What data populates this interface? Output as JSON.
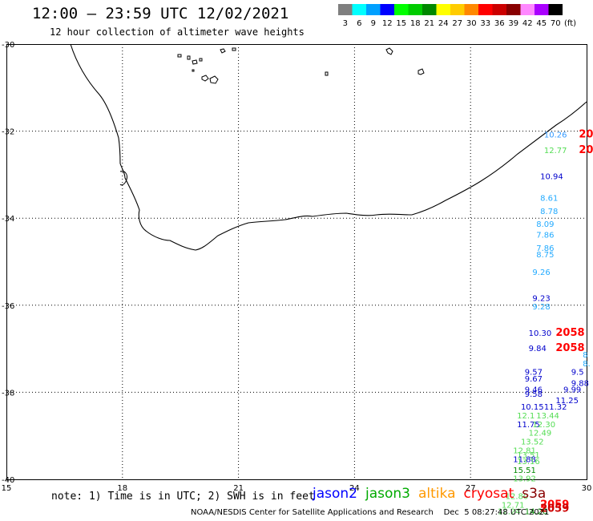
{
  "header": {
    "title": "12:00 – 23:59 UTC 12/02/2021",
    "subtitle": "12 hour collection of altimeter wave heights"
  },
  "color_scale": {
    "unit": "(ft)",
    "bins": [
      {
        "label": "3",
        "color": "#7f7f7f"
      },
      {
        "label": "6",
        "color": "#00ffff"
      },
      {
        "label": "9",
        "color": "#00a0ff"
      },
      {
        "label": "12",
        "color": "#0000ff"
      },
      {
        "label": "15",
        "color": "#00ff00"
      },
      {
        "label": "18",
        "color": "#00cc00"
      },
      {
        "label": "21",
        "color": "#008800"
      },
      {
        "label": "24",
        "color": "#ffff00"
      },
      {
        "label": "27",
        "color": "#ffcc00"
      },
      {
        "label": "30",
        "color": "#ff8800"
      },
      {
        "label": "33",
        "color": "#ff0000"
      },
      {
        "label": "36",
        "color": "#cc0000"
      },
      {
        "label": "39",
        "color": "#880000"
      },
      {
        "label": "42",
        "color": "#ff88ff"
      },
      {
        "label": "45",
        "color": "#aa00ff"
      },
      {
        "label": "70",
        "color": "#000000"
      }
    ]
  },
  "map": {
    "lon_range": [
      15,
      30
    ],
    "lat_range": [
      -40,
      -30
    ],
    "lon_ticks": [
      "15",
      "18",
      "21",
      "24",
      "27",
      "30"
    ],
    "lat_ticks": [
      "-30",
      "-32",
      "-34",
      "-36",
      "-38",
      "-40"
    ],
    "grid": true,
    "coastline_color": "#000000",
    "observations": [
      {
        "lon": 28.9,
        "lat": -32.15,
        "text": "10.26",
        "color": "#3399ff"
      },
      {
        "lon": 29.8,
        "lat": -32.15,
        "text": "20",
        "color": "#ff0000"
      },
      {
        "lon": 28.9,
        "lat": -32.5,
        "text": "12.77",
        "color": "#55dd55"
      },
      {
        "lon": 29.8,
        "lat": -32.5,
        "text": "20",
        "color": "#ff0000"
      },
      {
        "lon": 28.8,
        "lat": -33.1,
        "text": "10.94",
        "color": "#0000cc"
      },
      {
        "lon": 28.8,
        "lat": -33.6,
        "text": "8.61",
        "color": "#22aaff"
      },
      {
        "lon": 28.8,
        "lat": -33.9,
        "text": "8.78",
        "color": "#22aaff"
      },
      {
        "lon": 28.7,
        "lat": -34.2,
        "text": "8.09",
        "color": "#22aaff"
      },
      {
        "lon": 28.7,
        "lat": -34.45,
        "text": "7.86",
        "color": "#22aaff"
      },
      {
        "lon": 28.7,
        "lat": -34.75,
        "text": "7.86",
        "color": "#22aaff"
      },
      {
        "lon": 28.7,
        "lat": -34.9,
        "text": "8.75",
        "color": "#22aaff"
      },
      {
        "lon": 28.6,
        "lat": -35.3,
        "text": "9.26",
        "color": "#22aaff"
      },
      {
        "lon": 28.6,
        "lat": -35.9,
        "text": "9.23",
        "color": "#0000cc"
      },
      {
        "lon": 28.6,
        "lat": -36.1,
        "text": "9.28",
        "color": "#22aaff"
      },
      {
        "lon": 28.5,
        "lat": -36.7,
        "text": "10.30",
        "color": "#0000cc"
      },
      {
        "lon": 29.2,
        "lat": -36.7,
        "text": "2058",
        "color": "#ff0000"
      },
      {
        "lon": 28.5,
        "lat": -37.05,
        "text": "9.84",
        "color": "#0000cc"
      },
      {
        "lon": 29.2,
        "lat": -37.05,
        "text": "2058",
        "color": "#ff0000"
      },
      {
        "lon": 29.9,
        "lat": -37.2,
        "text": "8",
        "color": "#22aaff"
      },
      {
        "lon": 29.9,
        "lat": -37.4,
        "text": "8.",
        "color": "#22aaff"
      },
      {
        "lon": 28.4,
        "lat": -37.6,
        "text": "9.57",
        "color": "#0000cc"
      },
      {
        "lon": 29.6,
        "lat": -37.6,
        "text": "9.5",
        "color": "#0000cc"
      },
      {
        "lon": 28.4,
        "lat": -37.75,
        "text": "9.67",
        "color": "#0000cc"
      },
      {
        "lon": 29.6,
        "lat": -37.85,
        "text": "9.88",
        "color": "#0000cc"
      },
      {
        "lon": 28.4,
        "lat": -38.0,
        "text": "9.46",
        "color": "#0000cc"
      },
      {
        "lon": 28.4,
        "lat": -38.1,
        "text": "9.58",
        "color": "#0000cc"
      },
      {
        "lon": 29.4,
        "lat": -38.0,
        "text": "9.99",
        "color": "#0000cc"
      },
      {
        "lon": 29.2,
        "lat": -38.25,
        "text": "11.25",
        "color": "#0000cc"
      },
      {
        "lon": 28.3,
        "lat": -38.4,
        "text": "10.15",
        "color": "#0000cc"
      },
      {
        "lon": 28.9,
        "lat": -38.4,
        "text": "11.32",
        "color": "#0000cc"
      },
      {
        "lon": 28.2,
        "lat": -38.6,
        "text": "12.1",
        "color": "#55dd55"
      },
      {
        "lon": 28.7,
        "lat": -38.6,
        "text": "13.44",
        "color": "#55dd55"
      },
      {
        "lon": 28.2,
        "lat": -38.8,
        "text": "11.75",
        "color": "#0000cc"
      },
      {
        "lon": 28.6,
        "lat": -38.8,
        "text": "12.30",
        "color": "#55dd55"
      },
      {
        "lon": 28.5,
        "lat": -39.0,
        "text": "12.49",
        "color": "#55dd55"
      },
      {
        "lon": 28.3,
        "lat": -39.2,
        "text": "13.52",
        "color": "#55dd55"
      },
      {
        "lon": 28.1,
        "lat": -39.4,
        "text": "12.81",
        "color": "#55dd55"
      },
      {
        "lon": 28.2,
        "lat": -39.5,
        "text": "13.51",
        "color": "#55dd55"
      },
      {
        "lon": 28.1,
        "lat": -39.6,
        "text": "11.88",
        "color": "#0000cc"
      },
      {
        "lon": 28.2,
        "lat": -39.65,
        "text": "13.16",
        "color": "#55dd55"
      },
      {
        "lon": 28.1,
        "lat": -39.85,
        "text": "15.51",
        "color": "#008800"
      },
      {
        "lon": 28.1,
        "lat": -40.05,
        "text": "13.92",
        "color": "#55dd55"
      },
      {
        "lon": 27.9,
        "lat": -40.45,
        "text": "12.80",
        "color": "#55dd55"
      },
      {
        "lon": 27.8,
        "lat": -40.65,
        "text": "12.71",
        "color": "#55dd55"
      },
      {
        "lon": 28.8,
        "lat": -40.65,
        "text": "2059",
        "color": "#ff0000"
      },
      {
        "lon": 27.7,
        "lat": -40.8,
        "text": "12.24",
        "color": "#55dd55"
      },
      {
        "lon": 28.4,
        "lat": -40.8,
        "text": "14.26",
        "color": "#008800"
      },
      {
        "lon": 28.8,
        "lat": -40.75,
        "text": "2059",
        "color": "#cc0000"
      }
    ]
  },
  "note": "note: 1) Time is in UTC; 2) SWH is in feet",
  "satellites": [
    {
      "name": "jason2",
      "color": "#0000ff"
    },
    {
      "name": "jason3",
      "color": "#00aa00"
    },
    {
      "name": "altika",
      "color": "#ff9900"
    },
    {
      "name": "cryosat",
      "color": "#ff0000"
    },
    {
      "name": "s3a",
      "color": "#880000"
    }
  ],
  "footer": "NOAA/NESDIS Center for Satellite Applications and Research    Dec  5 08:27:48 UTC 2021"
}
